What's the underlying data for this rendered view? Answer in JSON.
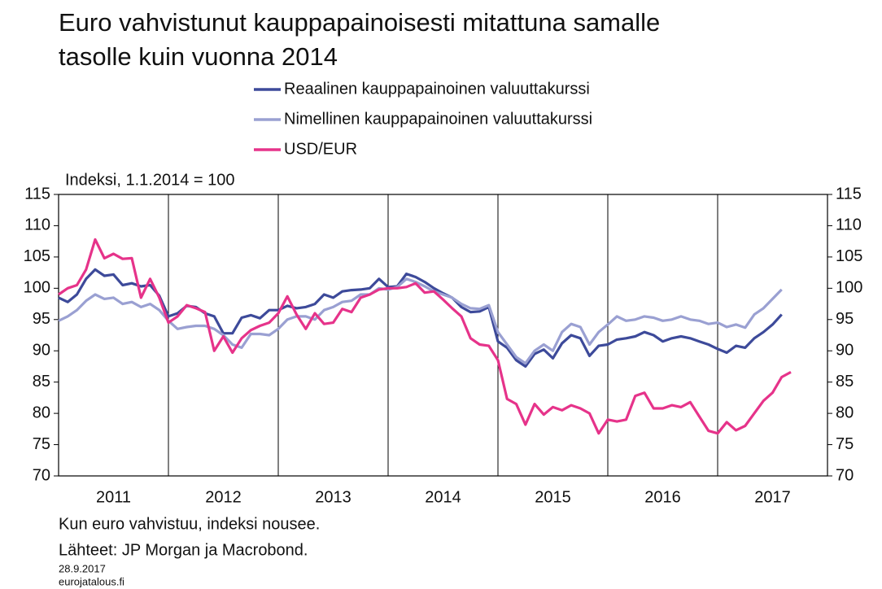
{
  "chart_data": {
    "type": "line",
    "title": [
      "Euro vahvistunut kauppapainoisesti mitattuna samalle",
      "tasolle kuin vuonna 2014"
    ],
    "y_label": "Indeksi, 1.1.2014 = 100",
    "notes": [
      "Kun euro vahvistuu, indeksi nousee.",
      "Lähteet: JP Morgan ja Macrobond."
    ],
    "date": "28.9.2017",
    "source": "eurojatalous.fi",
    "xlim": [
      2011,
      2018
    ],
    "xticks": [
      {
        "value": 2011,
        "label": "2011"
      },
      {
        "value": 2012,
        "label": "2012"
      },
      {
        "value": 2013,
        "label": "2013"
      },
      {
        "value": 2014,
        "label": "2014"
      },
      {
        "value": 2015,
        "label": "2015"
      },
      {
        "value": 2016,
        "label": "2016"
      },
      {
        "value": 2017,
        "label": "2017"
      }
    ],
    "ylim": [
      70,
      115
    ],
    "yticks": [
      70,
      75,
      80,
      85,
      90,
      95,
      100,
      105,
      110,
      115
    ],
    "grid": true,
    "right_axis": true,
    "x": [
      2011,
      2011.083,
      2011.167,
      2011.25,
      2011.333,
      2011.417,
      2011.5,
      2011.583,
      2011.667,
      2011.75,
      2011.833,
      2011.917,
      2012,
      2012.083,
      2012.167,
      2012.25,
      2012.333,
      2012.417,
      2012.5,
      2012.583,
      2012.667,
      2012.75,
      2012.833,
      2012.917,
      2013,
      2013.083,
      2013.167,
      2013.25,
      2013.333,
      2013.417,
      2013.5,
      2013.583,
      2013.667,
      2013.75,
      2013.833,
      2013.917,
      2014,
      2014.083,
      2014.167,
      2014.25,
      2014.333,
      2014.417,
      2014.5,
      2014.583,
      2014.667,
      2014.75,
      2014.833,
      2014.917,
      2015,
      2015.083,
      2015.167,
      2015.25,
      2015.333,
      2015.417,
      2015.5,
      2015.583,
      2015.667,
      2015.75,
      2015.833,
      2015.917,
      2016,
      2016.083,
      2016.167,
      2016.25,
      2016.333,
      2016.417,
      2016.5,
      2016.583,
      2016.667,
      2016.75,
      2016.833,
      2016.917,
      2017,
      2017.083,
      2017.167,
      2017.25,
      2017.333,
      2017.417,
      2017.5,
      2017.583,
      2017.667
    ],
    "series": [
      {
        "name": "Reaalinen kauppapainoinen valuuttakurssi",
        "color": "#3d4a9a",
        "values": [
          98.5,
          97.8,
          99,
          101.5,
          103,
          102,
          102.2,
          100.5,
          100.8,
          100.3,
          100.5,
          98.8,
          95.5,
          96,
          97.2,
          97,
          96,
          95.5,
          92.8,
          92.8,
          95.3,
          95.7,
          95.2,
          96.5,
          96.5,
          97.2,
          96.8,
          97,
          97.5,
          99,
          98.5,
          99.5,
          99.7,
          99.8,
          100,
          101.5,
          100.2,
          100.3,
          102.3,
          101.8,
          101,
          100,
          99.2,
          98.5,
          97,
          96.2,
          96.3,
          97,
          91.5,
          90.5,
          88.5,
          87.5,
          89.5,
          90.2,
          88.8,
          91.2,
          92.5,
          92,
          89.2,
          90.8,
          91,
          91.8,
          92,
          92.3,
          93,
          92.5,
          91.5,
          92,
          92.3,
          92,
          91.5,
          91,
          90.3,
          89.7,
          90.8,
          90.5,
          92,
          93,
          94.2,
          95.8,
          null
        ]
      },
      {
        "name": "Nimellinen kauppapainoinen valuuttakurssi",
        "color": "#9aa0d2",
        "values": [
          94.8,
          95.5,
          96.5,
          98,
          99,
          98.3,
          98.5,
          97.5,
          97.8,
          97,
          97.5,
          96.5,
          94.8,
          93.5,
          93.8,
          94,
          94,
          93.5,
          92.5,
          91,
          90.5,
          92.7,
          92.7,
          92.5,
          93.5,
          95,
          95.5,
          95.5,
          95,
          96.5,
          97,
          97.8,
          98,
          99,
          99,
          100,
          99.8,
          100.2,
          101.5,
          101,
          100.3,
          99.5,
          99,
          98.5,
          97.5,
          96.8,
          96.7,
          97.3,
          93,
          91,
          89,
          88,
          90,
          91,
          90,
          93,
          94.3,
          93.8,
          91,
          93,
          94.2,
          95.5,
          94.8,
          95,
          95.5,
          95.3,
          94.8,
          95,
          95.5,
          95,
          94.8,
          94.3,
          94.5,
          93.8,
          94.2,
          93.7,
          95.8,
          96.8,
          98.3,
          99.8,
          null
        ]
      },
      {
        "name": "USD/EUR",
        "color": "#e6338a",
        "values": [
          99,
          100,
          100.5,
          103,
          107.8,
          104.8,
          105.5,
          104.7,
          104.8,
          98.5,
          101.5,
          98.5,
          94.5,
          95.5,
          97.3,
          96.8,
          96.2,
          90,
          92.3,
          89.7,
          92,
          93.3,
          94,
          94.5,
          96,
          98.7,
          95.8,
          93.5,
          96,
          94.3,
          94.5,
          96.7,
          96.2,
          98.5,
          99,
          99.8,
          100,
          100,
          100.2,
          100.8,
          99.3,
          99.5,
          98.2,
          96.8,
          95.5,
          92,
          91,
          90.8,
          88.5,
          82.3,
          81.5,
          78.2,
          81.5,
          79.8,
          81,
          80.5,
          81.3,
          80.8,
          80,
          76.8,
          79,
          78.7,
          79,
          82.8,
          83.3,
          80.8,
          80.8,
          81.3,
          81,
          81.8,
          79.5,
          77.2,
          76.8,
          78.6,
          77.3,
          78,
          80,
          82,
          83.3,
          85.8,
          86.6
        ]
      }
    ]
  }
}
